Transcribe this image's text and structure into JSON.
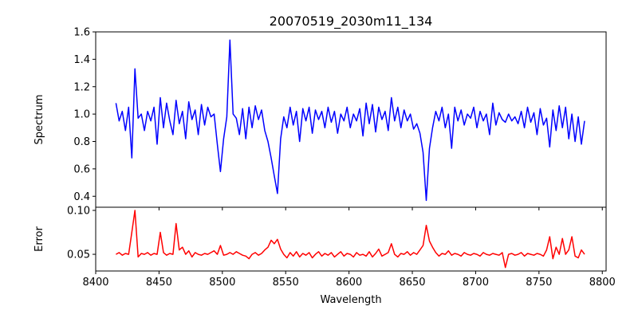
{
  "chart_data": [
    {
      "type": "line",
      "title": "20070519_2030m11_134",
      "xlabel": "",
      "ylabel": "Spectrum",
      "xlim": [
        8400,
        8803
      ],
      "ylim": [
        0.32,
        1.6
      ],
      "xticks": [
        8400,
        8450,
        8500,
        8550,
        8600,
        8650,
        8700,
        8750,
        8800
      ],
      "yticks": [
        "0.4",
        "0.6",
        "0.8",
        "1.0",
        "1.2",
        "1.4",
        "1.6"
      ],
      "color": "#0000ff",
      "x_start": 8416,
      "x_step": 2.5,
      "values": [
        1.08,
        0.95,
        1.02,
        0.88,
        1.05,
        0.68,
        1.33,
        0.97,
        1.0,
        0.88,
        1.02,
        0.95,
        1.05,
        0.78,
        1.12,
        0.9,
        1.08,
        0.95,
        0.85,
        1.1,
        0.93,
        1.02,
        0.82,
        1.09,
        0.96,
        1.03,
        0.85,
        1.07,
        0.92,
        1.05,
        0.98,
        1.0,
        0.78,
        0.58,
        0.82,
        0.98,
        1.54,
        1.0,
        0.97,
        0.85,
        1.04,
        0.82,
        1.05,
        0.9,
        1.06,
        0.96,
        1.03,
        0.88,
        0.8,
        0.68,
        0.55,
        0.42,
        0.82,
        0.98,
        0.9,
        1.05,
        0.92,
        1.02,
        0.8,
        1.04,
        0.95,
        1.05,
        0.86,
        1.03,
        0.96,
        1.02,
        0.9,
        1.05,
        0.94,
        1.02,
        0.86,
        1.0,
        0.95,
        1.05,
        0.9,
        1.0,
        0.95,
        1.04,
        0.84,
        1.08,
        0.93,
        1.07,
        0.87,
        1.05,
        0.96,
        1.02,
        0.88,
        1.12,
        0.95,
        1.05,
        0.9,
        1.03,
        0.95,
        1.0,
        0.89,
        0.93,
        0.86,
        0.72,
        0.37,
        0.75,
        0.9,
        1.02,
        0.95,
        1.05,
        0.9,
        1.0,
        0.75,
        1.05,
        0.95,
        1.03,
        0.92,
        1.0,
        0.97,
        1.05,
        0.9,
        1.02,
        0.95,
        1.0,
        0.85,
        1.08,
        0.92,
        1.01,
        0.96,
        0.94,
        1.0,
        0.95,
        0.98,
        0.93,
        1.02,
        0.9,
        1.05,
        0.94,
        1.01,
        0.85,
        1.04,
        0.92,
        0.97,
        0.76,
        1.03,
        0.88,
        1.06,
        0.9,
        1.05,
        0.82,
        1.0,
        0.8,
        0.98,
        0.78,
        0.95
      ]
    },
    {
      "type": "line",
      "title": "",
      "xlabel": "Wavelength",
      "ylabel": "Error",
      "xlim": [
        8400,
        8803
      ],
      "ylim": [
        0.031,
        0.1036
      ],
      "xticks": [
        8400,
        8450,
        8500,
        8550,
        8600,
        8650,
        8700,
        8750,
        8800
      ],
      "yticks": [
        "0.05",
        "0.10"
      ],
      "color": "#ff0000",
      "x_start": 8416,
      "x_step": 2.5,
      "values": [
        0.05,
        0.052,
        0.049,
        0.051,
        0.05,
        0.075,
        0.1,
        0.047,
        0.051,
        0.05,
        0.052,
        0.049,
        0.051,
        0.05,
        0.075,
        0.052,
        0.049,
        0.051,
        0.05,
        0.085,
        0.055,
        0.058,
        0.05,
        0.054,
        0.047,
        0.052,
        0.05,
        0.049,
        0.051,
        0.05,
        0.052,
        0.054,
        0.05,
        0.06,
        0.049,
        0.05,
        0.052,
        0.05,
        0.053,
        0.051,
        0.049,
        0.048,
        0.045,
        0.05,
        0.052,
        0.049,
        0.051,
        0.055,
        0.058,
        0.066,
        0.062,
        0.067,
        0.056,
        0.05,
        0.046,
        0.052,
        0.048,
        0.053,
        0.047,
        0.051,
        0.049,
        0.052,
        0.046,
        0.05,
        0.053,
        0.048,
        0.051,
        0.049,
        0.052,
        0.047,
        0.05,
        0.053,
        0.048,
        0.051,
        0.05,
        0.047,
        0.052,
        0.049,
        0.05,
        0.048,
        0.053,
        0.047,
        0.051,
        0.056,
        0.048,
        0.05,
        0.052,
        0.062,
        0.05,
        0.047,
        0.051,
        0.05,
        0.053,
        0.049,
        0.052,
        0.05,
        0.055,
        0.06,
        0.083,
        0.065,
        0.058,
        0.052,
        0.048,
        0.051,
        0.05,
        0.054,
        0.049,
        0.051,
        0.05,
        0.048,
        0.052,
        0.05,
        0.049,
        0.051,
        0.05,
        0.048,
        0.052,
        0.05,
        0.049,
        0.051,
        0.05,
        0.049,
        0.052,
        0.035,
        0.05,
        0.051,
        0.049,
        0.05,
        0.052,
        0.048,
        0.051,
        0.05,
        0.049,
        0.051,
        0.05,
        0.048,
        0.055,
        0.07,
        0.045,
        0.058,
        0.05,
        0.068,
        0.05,
        0.055,
        0.07,
        0.048,
        0.046,
        0.055,
        0.05
      ]
    }
  ]
}
